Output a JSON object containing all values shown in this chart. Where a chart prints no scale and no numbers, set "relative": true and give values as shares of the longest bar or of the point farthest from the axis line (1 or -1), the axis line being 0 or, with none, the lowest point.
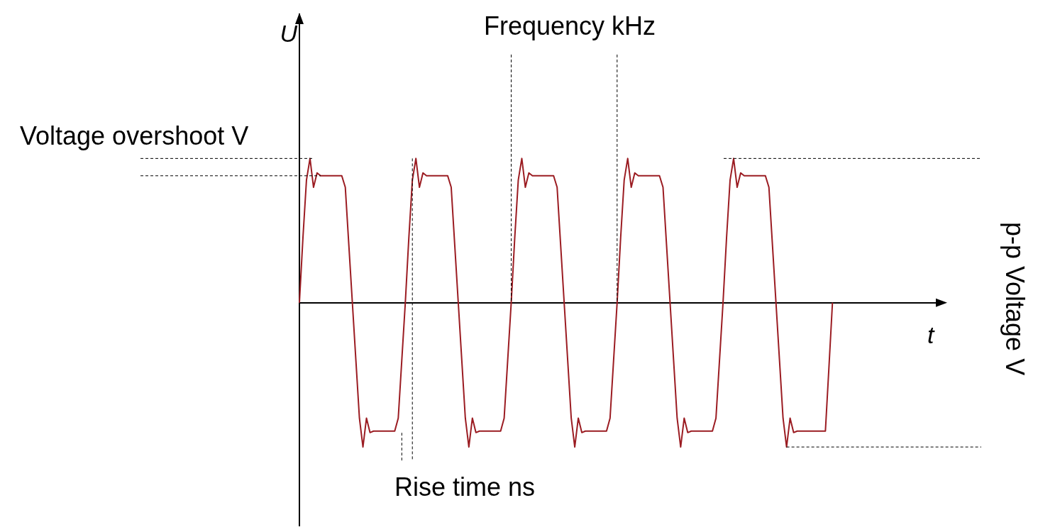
{
  "chart_data": {
    "type": "line",
    "relative": true,
    "xlabel": "t",
    "ylabel": "U",
    "marker": "none",
    "line_style": "solid",
    "annotations": [
      "Voltage overshoot V",
      "Frequency kHz",
      "p-p Voltage V",
      "Rise time ns"
    ],
    "categories": [
      null,
      null,
      null,
      null,
      null,
      null,
      null,
      null,
      null,
      null,
      null,
      null,
      null,
      null,
      null,
      null,
      null,
      null,
      null,
      null,
      null,
      null,
      null,
      null,
      null,
      null,
      null,
      null,
      null,
      null,
      null,
      null,
      null,
      null,
      null,
      null,
      null,
      null,
      null,
      null,
      null,
      null,
      null,
      null,
      null,
      null,
      null,
      null,
      null,
      null,
      null,
      null,
      null,
      null,
      null,
      null,
      null,
      null,
      null,
      null,
      null,
      null,
      null,
      null,
      null,
      null,
      null,
      null,
      null,
      null,
      null,
      null,
      null,
      null,
      null,
      null,
      null,
      null,
      null,
      null,
      null,
      null,
      null,
      null,
      null,
      null,
      null,
      null,
      null,
      null,
      null,
      null,
      null,
      null,
      null,
      null,
      null,
      null,
      null,
      null,
      null,
      null,
      null,
      null,
      null,
      null,
      null,
      null,
      null,
      null,
      null,
      null,
      null,
      null,
      null,
      null,
      null,
      null,
      null,
      null,
      null,
      null,
      null,
      null,
      null,
      null,
      null,
      null,
      null,
      null,
      null,
      null,
      null,
      null,
      null,
      null,
      null,
      null,
      null,
      null,
      null,
      null,
      null,
      null,
      null,
      null,
      null,
      null,
      null,
      null,
      null,
      null
    ],
    "series": [
      {
        "color": "#9b1c22",
        "values": [
          0,
          0.45,
          0.85,
          1,
          0.8,
          0.9,
          0.88,
          0.88,
          0.88,
          0.88,
          0.88,
          0.88,
          0.88,
          0.8,
          0.4,
          0,
          -0.4,
          -0.8,
          -1,
          -0.8,
          -0.9,
          -0.89,
          -0.89,
          -0.89,
          -0.89,
          -0.89,
          -0.89,
          -0.89,
          -0.8,
          -0.4,
          0,
          0.45,
          0.85,
          1,
          0.8,
          0.9,
          0.88,
          0.88,
          0.88,
          0.88,
          0.88,
          0.88,
          0.88,
          0.8,
          0.4,
          0,
          -0.4,
          -0.8,
          -1,
          -0.8,
          -0.9,
          -0.89,
          -0.89,
          -0.89,
          -0.89,
          -0.89,
          -0.89,
          -0.89,
          -0.8,
          -0.4,
          0,
          0.45,
          0.85,
          1,
          0.8,
          0.9,
          0.88,
          0.88,
          0.88,
          0.88,
          0.88,
          0.88,
          0.88,
          0.8,
          0.4,
          0,
          -0.4,
          -0.8,
          -1,
          -0.8,
          -0.9,
          -0.89,
          -0.89,
          -0.89,
          -0.89,
          -0.89,
          -0.89,
          -0.89,
          -0.8,
          -0.4,
          0,
          0.45,
          0.85,
          1,
          0.8,
          0.9,
          0.88,
          0.88,
          0.88,
          0.88,
          0.88,
          0.88,
          0.88,
          0.8,
          0.4,
          0,
          -0.4,
          -0.8,
          -1,
          -0.8,
          -0.9,
          -0.89,
          -0.89,
          -0.89,
          -0.89,
          -0.89,
          -0.89,
          -0.89,
          -0.8,
          -0.4,
          0,
          0.45,
          0.85,
          1,
          0.8,
          0.9,
          0.88,
          0.88,
          0.88,
          0.88,
          0.88,
          0.88,
          0.88,
          0.8,
          0.4,
          0,
          -0.4,
          -0.8,
          -1,
          -0.8,
          -0.9,
          -0.89,
          -0.89,
          -0.89,
          -0.89,
          -0.89,
          -0.89,
          -0.89,
          -0.89,
          -0.89,
          -0.45,
          0
        ]
      }
    ]
  }
}
